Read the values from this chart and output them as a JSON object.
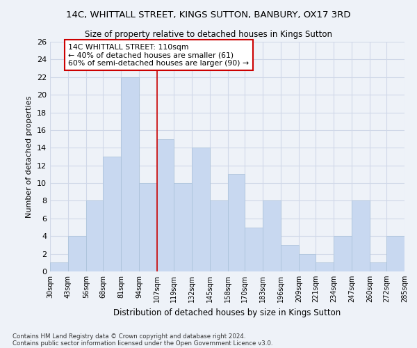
{
  "title": "14C, WHITTALL STREET, KINGS SUTTON, BANBURY, OX17 3RD",
  "subtitle": "Size of property relative to detached houses in Kings Sutton",
  "xlabel": "Distribution of detached houses by size in Kings Sutton",
  "ylabel": "Number of detached properties",
  "bar_color": "#c8d8f0",
  "bar_edgecolor": "#a8c0d8",
  "reference_line_x": 107,
  "reference_line_color": "#cc0000",
  "bin_edges": [
    30,
    43,
    56,
    68,
    81,
    94,
    107,
    119,
    132,
    145,
    158,
    170,
    183,
    196,
    209,
    221,
    234,
    247,
    260,
    272,
    285
  ],
  "bin_labels": [
    "30sqm",
    "43sqm",
    "56sqm",
    "68sqm",
    "81sqm",
    "94sqm",
    "107sqm",
    "119sqm",
    "132sqm",
    "145sqm",
    "158sqm",
    "170sqm",
    "183sqm",
    "196sqm",
    "209sqm",
    "221sqm",
    "234sqm",
    "247sqm",
    "260sqm",
    "272sqm",
    "285sqm"
  ],
  "counts": [
    1,
    4,
    8,
    13,
    22,
    10,
    15,
    10,
    14,
    8,
    11,
    5,
    8,
    3,
    2,
    1,
    4,
    8,
    1,
    4
  ],
  "ylim": [
    0,
    26
  ],
  "yticks": [
    0,
    2,
    4,
    6,
    8,
    10,
    12,
    14,
    16,
    18,
    20,
    22,
    24,
    26
  ],
  "annotation_line1": "14C WHITTALL STREET: 110sqm",
  "annotation_line2": "← 40% of detached houses are smaller (61)",
  "annotation_line3": "60% of semi-detached houses are larger (90) →",
  "annotation_box_edgecolor": "#cc0000",
  "footnote1": "Contains HM Land Registry data © Crown copyright and database right 2024.",
  "footnote2": "Contains public sector information licensed under the Open Government Licence v3.0.",
  "background_color": "#eef2f8",
  "grid_color": "#d0d8e8"
}
